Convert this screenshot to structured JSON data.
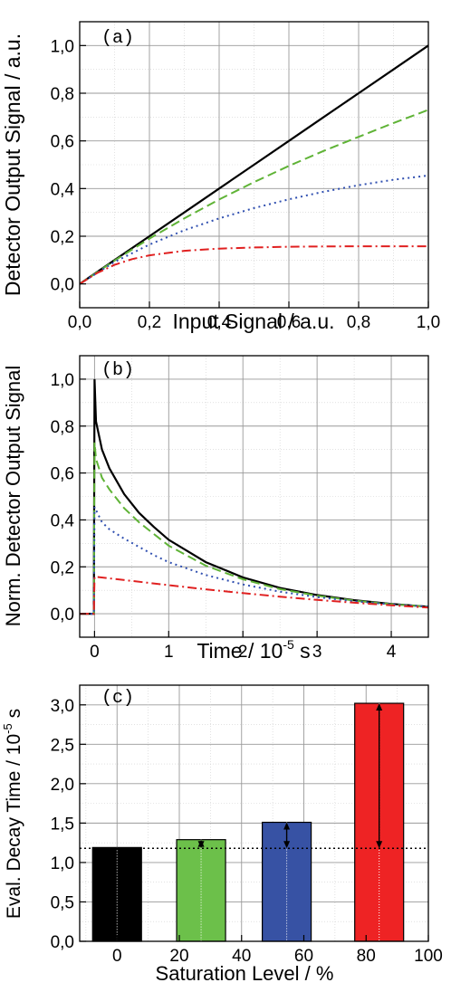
{
  "chart_data": [
    {
      "panel_label": "(a)",
      "type": "line",
      "xlabel": "Input Signal / a.u.",
      "ylabel": "Detector Output Signal / a.u.",
      "xlim": [
        0,
        1.0
      ],
      "ylim": [
        -0.1,
        1.1
      ],
      "xticks": [
        "0,0",
        "0,2",
        "0,4",
        "0,6",
        "0,8",
        "1,0"
      ],
      "yticks": [
        "0,0",
        "0,2",
        "0,4",
        "0,6",
        "0,8",
        "1,0"
      ],
      "grid": true,
      "series": [
        {
          "color": "#000000",
          "style": "solid",
          "x": [
            0,
            0.1,
            0.2,
            0.3,
            0.4,
            0.5,
            0.6,
            0.7,
            0.8,
            0.9,
            1.0
          ],
          "y": [
            0,
            0.1,
            0.2,
            0.3,
            0.4,
            0.5,
            0.6,
            0.7,
            0.8,
            0.9,
            1.0
          ]
        },
        {
          "color": "#5fb336",
          "style": "dashed",
          "x": [
            0,
            0.1,
            0.2,
            0.3,
            0.4,
            0.5,
            0.6,
            0.7,
            0.8,
            0.9,
            1.0
          ],
          "y": [
            0,
            0.098,
            0.19,
            0.275,
            0.354,
            0.427,
            0.495,
            0.558,
            0.617,
            0.675,
            0.73
          ]
        },
        {
          "color": "#2f4fb0",
          "style": "dotted",
          "x": [
            0,
            0.1,
            0.2,
            0.3,
            0.4,
            0.5,
            0.6,
            0.7,
            0.8,
            0.9,
            1.0
          ],
          "y": [
            0,
            0.092,
            0.165,
            0.225,
            0.275,
            0.318,
            0.355,
            0.387,
            0.414,
            0.437,
            0.455
          ]
        },
        {
          "color": "#e02020",
          "style": "dashdot",
          "x": [
            0,
            0.05,
            0.1,
            0.15,
            0.2,
            0.3,
            0.4,
            0.5,
            0.6,
            0.7,
            0.8,
            0.9,
            1.0
          ],
          "y": [
            0,
            0.046,
            0.08,
            0.104,
            0.12,
            0.139,
            0.148,
            0.153,
            0.156,
            0.157,
            0.158,
            0.158,
            0.158
          ]
        }
      ]
    },
    {
      "panel_label": "(b)",
      "type": "line",
      "xlabel": "Time / 10",
      "xlabel_sup": "-5",
      "xlabel_tail": " s",
      "ylabel": "Norm. Detector Output Signal",
      "xlim": [
        -0.2,
        4.5
      ],
      "ylim": [
        -0.1,
        1.1
      ],
      "xticks": [
        0,
        1,
        2,
        3,
        4
      ],
      "yticks": [
        "0,0",
        "0,2",
        "0,4",
        "0,6",
        "0,8",
        "1,0"
      ],
      "grid": true,
      "series": [
        {
          "color": "#000000",
          "style": "solid",
          "x": [
            -0.2,
            -0.01,
            0,
            0.02,
            0.1,
            0.2,
            0.4,
            0.6,
            0.8,
            1.0,
            1.5,
            2.0,
            2.5,
            3.0,
            3.5,
            4.0,
            4.5
          ],
          "y": [
            0,
            0,
            1.0,
            0.82,
            0.7,
            0.62,
            0.51,
            0.43,
            0.37,
            0.315,
            0.22,
            0.155,
            0.11,
            0.08,
            0.058,
            0.042,
            0.03
          ]
        },
        {
          "color": "#5fb336",
          "style": "dashed",
          "x": [
            -0.2,
            -0.01,
            0,
            0.02,
            0.1,
            0.2,
            0.4,
            0.6,
            0.8,
            1.0,
            1.5,
            2.0,
            2.5,
            3.0,
            3.5,
            4.0,
            4.5
          ],
          "y": [
            0,
            0,
            0.73,
            0.66,
            0.58,
            0.53,
            0.45,
            0.39,
            0.34,
            0.29,
            0.205,
            0.147,
            0.105,
            0.077,
            0.056,
            0.041,
            0.03
          ]
        },
        {
          "color": "#2f4fb0",
          "style": "dotted",
          "x": [
            -0.2,
            -0.01,
            0,
            0.1,
            0.2,
            0.4,
            0.6,
            0.8,
            1.0,
            1.5,
            2.0,
            2.5,
            3.0,
            3.5,
            4.0,
            4.5
          ],
          "y": [
            0,
            0,
            0.455,
            0.39,
            0.36,
            0.32,
            0.285,
            0.25,
            0.22,
            0.165,
            0.125,
            0.094,
            0.071,
            0.053,
            0.04,
            0.03
          ]
        },
        {
          "color": "#e02020",
          "style": "dashdot",
          "x": [
            -0.2,
            -0.01,
            0,
            0.5,
            1.0,
            1.5,
            2.0,
            2.5,
            3.0,
            3.5,
            4.0,
            4.5
          ],
          "y": [
            0,
            0,
            0.158,
            0.14,
            0.122,
            0.104,
            0.088,
            0.073,
            0.059,
            0.047,
            0.036,
            0.026
          ]
        }
      ]
    },
    {
      "panel_label": "(c)",
      "type": "bar",
      "xlabel": "Saturation Level / %",
      "ylabel": "Eval. Decay Time / 10",
      "ylabel_sup": "-5",
      "ylabel_tail": " s",
      "xlim": [
        -12,
        100
      ],
      "ylim": [
        0,
        3.25
      ],
      "xticks": [
        0,
        20,
        40,
        60,
        80,
        100
      ],
      "yticks": [
        "0,0",
        "0,5",
        "1,0",
        "1,5",
        "2,0",
        "2,5",
        "3,0"
      ],
      "grid": true,
      "reference_line": 1.18,
      "bars": [
        {
          "x": 0,
          "value": 1.19,
          "color": "#000000"
        },
        {
          "x": 27,
          "value": 1.29,
          "color": "#6cc04a"
        },
        {
          "x": 54.5,
          "value": 1.51,
          "color": "#3752a4"
        },
        {
          "x": 84.2,
          "value": 3.02,
          "color": "#ee2324"
        }
      ]
    }
  ]
}
